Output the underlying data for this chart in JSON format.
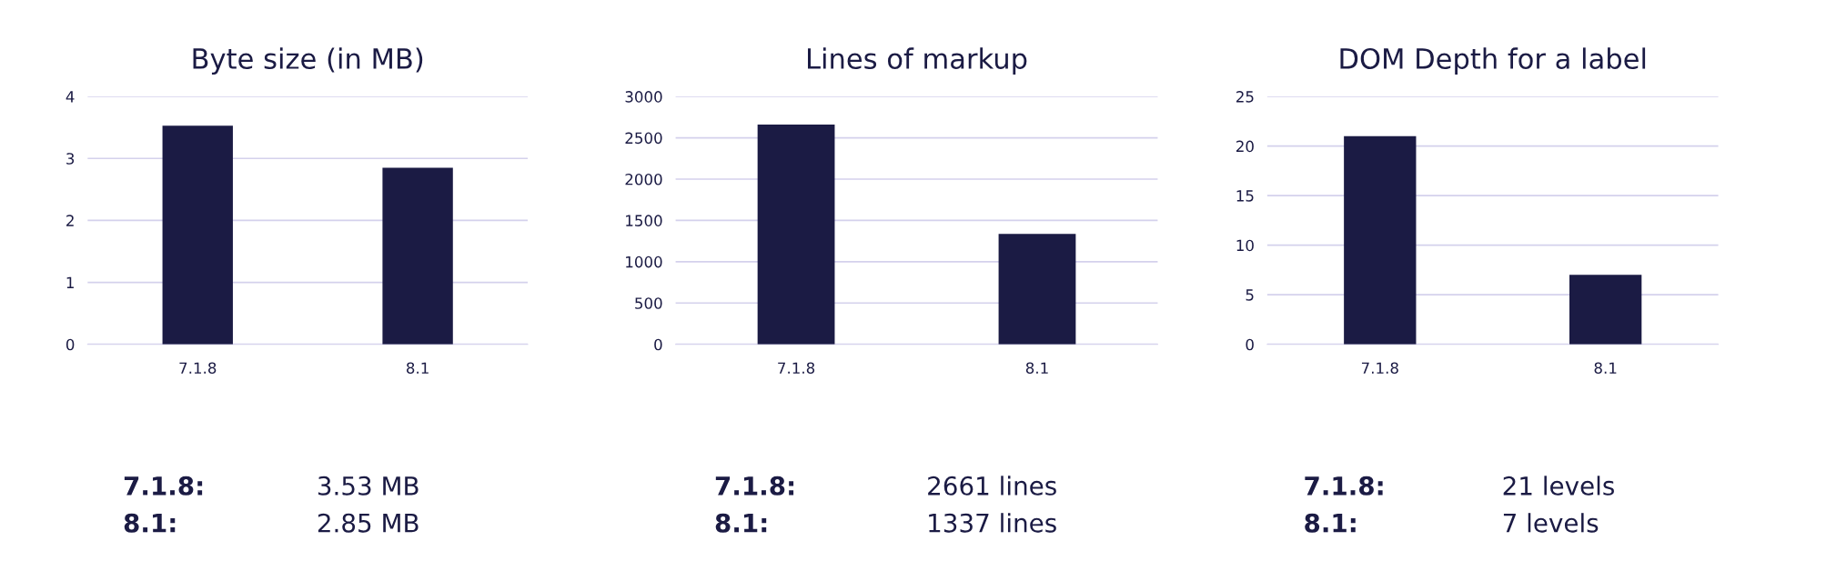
{
  "chart_data": [
    {
      "type": "bar",
      "title": "Byte size (in MB)",
      "categories": [
        "7.1.8",
        "8.1"
      ],
      "values": [
        3.53,
        2.85
      ],
      "color": "#1b1b44",
      "ylim": [
        0,
        4
      ],
      "yticks": [
        0,
        1,
        2,
        3,
        4
      ],
      "grid": "y",
      "legend": false,
      "annotations": [
        "7.1.8:",
        "3.53 MB",
        "8.1:",
        "2.85 MB"
      ]
    },
    {
      "type": "bar",
      "title": "Lines of markup",
      "categories": [
        "7.1.8",
        "8.1"
      ],
      "values": [
        2661,
        1337
      ],
      "color": "#1b1b44",
      "ylim": [
        0,
        3000
      ],
      "yticks": [
        0,
        500,
        1000,
        1500,
        2000,
        2500,
        3000
      ],
      "grid": "y",
      "legend": false,
      "annotations": [
        "7.1.8:",
        "2661 lines",
        "8.1:",
        "1337 lines"
      ]
    },
    {
      "type": "bar",
      "title": "DOM Depth for a label",
      "categories": [
        "7.1.8",
        "8.1"
      ],
      "values": [
        21,
        7
      ],
      "color": "#1b1b44",
      "ylim": [
        0,
        25
      ],
      "yticks": [
        0,
        5,
        10,
        15,
        20,
        25
      ],
      "grid": "y",
      "legend": false,
      "annotations": [
        "7.1.8:",
        "21 levels",
        "8.1:",
        "7 levels"
      ]
    }
  ]
}
